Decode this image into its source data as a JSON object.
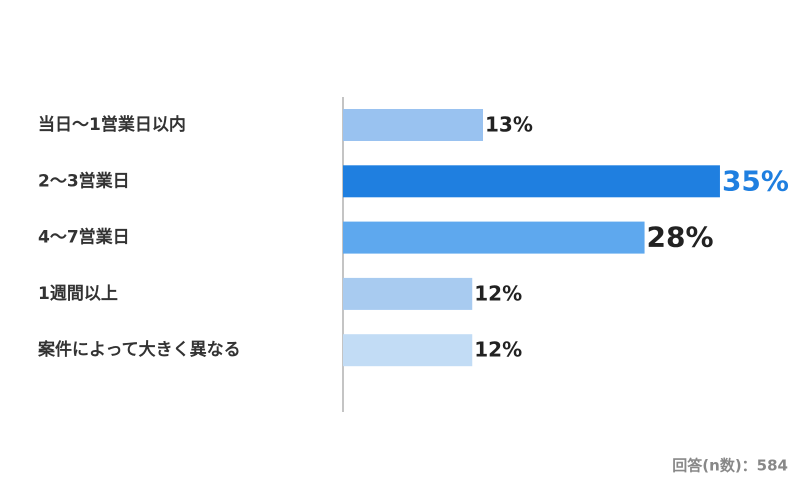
{
  "chart_data": {
    "type": "bar",
    "orientation": "horizontal",
    "categories": [
      "当日〜1営業日以内",
      "2〜3営業日",
      "4〜7営業日",
      "1週間以上",
      "案件によって大きく異なる"
    ],
    "values": [
      13,
      35,
      28,
      12,
      12
    ],
    "value_labels": [
      "13%",
      "35%",
      "28%",
      "12%",
      "12%"
    ],
    "colors": [
      "#99c2f0",
      "#1f7fe0",
      "#5ea8ee",
      "#a8cbf0",
      "#c2dcf5"
    ],
    "footnote": "回答(n数)：584"
  }
}
